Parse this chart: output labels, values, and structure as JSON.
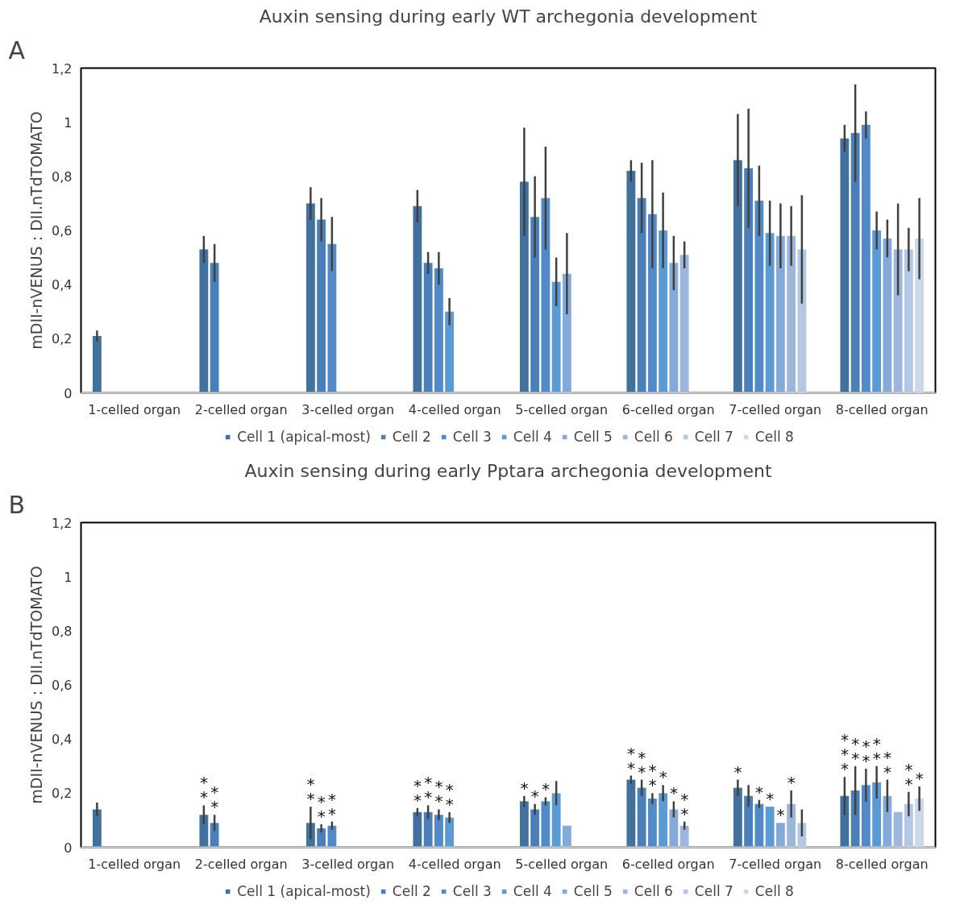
{
  "chart_data": [
    {
      "type": "bar",
      "title": "Auxin sensing during early WT archegonia development",
      "ylabel": "mDII-nVENUS : DII.nTdTOMATO",
      "annotations": [
        "A"
      ],
      "legend": "bottom",
      "ylim": [
        0,
        1.2
      ],
      "yticks": [
        0,
        {
          "value": 0.2,
          "label": "0,2"
        },
        {
          "value": 0.4,
          "label": "0,4"
        },
        {
          "value": 0.6,
          "label": "0,6"
        },
        {
          "value": 0.8,
          "label": "0,8"
        },
        1,
        {
          "value": 1.2,
          "label": "1,2"
        }
      ],
      "categories": [
        "1-celled organ",
        "2-celled organ",
        "3-celled organ",
        "4-celled organ",
        "5-celled organ",
        "6-celled organ",
        "7-celled organ",
        "8-celled organ"
      ],
      "series": [
        {
          "name": "Cell 1 (apical-most)",
          "color": "#41719c",
          "values": [
            0.21,
            0.53,
            0.7,
            0.69,
            0.78,
            0.82,
            0.86,
            0.94
          ],
          "errors": [
            0.02,
            0.05,
            0.06,
            0.06,
            0.2,
            0.04,
            0.17,
            0.05
          ]
        },
        {
          "name": "Cell 2",
          "color": "#4a7fba",
          "values": [
            null,
            0.48,
            0.64,
            0.48,
            0.65,
            0.72,
            0.83,
            0.96
          ],
          "errors": [
            null,
            0.07,
            0.08,
            0.04,
            0.15,
            0.13,
            0.22,
            0.18
          ]
        },
        {
          "name": "Cell 3",
          "color": "#5289c9",
          "values": [
            null,
            null,
            0.55,
            0.46,
            0.72,
            0.66,
            0.71,
            0.99
          ],
          "errors": [
            null,
            null,
            0.1,
            0.06,
            0.19,
            0.2,
            0.13,
            0.05
          ]
        },
        {
          "name": "Cell 4",
          "color": "#5b9bd5",
          "values": [
            null,
            null,
            null,
            0.3,
            0.41,
            0.6,
            0.59,
            0.6
          ],
          "errors": [
            null,
            null,
            null,
            0.05,
            0.09,
            0.14,
            0.12,
            0.07
          ]
        },
        {
          "name": "Cell 5",
          "color": "#85a9d8",
          "values": [
            null,
            null,
            null,
            null,
            0.44,
            0.48,
            0.58,
            0.57
          ],
          "errors": [
            null,
            null,
            null,
            null,
            0.15,
            0.1,
            0.12,
            0.07
          ]
        },
        {
          "name": "Cell 6",
          "color": "#9cb6de",
          "values": [
            null,
            null,
            null,
            null,
            null,
            0.51,
            0.58,
            0.53
          ],
          "errors": [
            null,
            null,
            null,
            null,
            null,
            0.05,
            0.11,
            0.17
          ]
        },
        {
          "name": "Cell 7",
          "color": "#b4c8e6",
          "values": [
            null,
            null,
            null,
            null,
            null,
            null,
            0.53,
            0.53
          ],
          "errors": [
            null,
            null,
            null,
            null,
            null,
            null,
            0.2,
            0.08
          ]
        },
        {
          "name": "Cell 8",
          "color": "#cbd8ec",
          "values": [
            null,
            null,
            null,
            null,
            null,
            null,
            null,
            0.57
          ],
          "errors": [
            null,
            null,
            null,
            null,
            null,
            null,
            null,
            0.15
          ]
        }
      ]
    },
    {
      "type": "bar",
      "title": "Auxin sensing during early Pptara archegonia development",
      "ylabel": "mDII-nVENUS : DII.nTdTOMATO",
      "annotations": [
        "B"
      ],
      "legend": "bottom",
      "ylim": [
        0,
        1.2
      ],
      "yticks": [
        0,
        {
          "value": 0.2,
          "label": "0,2"
        },
        {
          "value": 0.4,
          "label": "0,4"
        },
        {
          "value": 0.6,
          "label": "0,6"
        },
        {
          "value": 0.8,
          "label": "0,8"
        },
        1,
        {
          "value": 1.2,
          "label": "1,2"
        }
      ],
      "categories": [
        "1-celled organ",
        "2-celled organ",
        "3-celled organ",
        "4-celled organ",
        "5-celled organ",
        "6-celled organ",
        "7-celled organ",
        "8-celled organ"
      ],
      "series": [
        {
          "name": "Cell 1 (apical-most)",
          "color": "#41719c",
          "values": [
            0.14,
            0.12,
            0.09,
            0.13,
            0.17,
            0.25,
            0.22,
            0.19
          ],
          "errors": [
            0.025,
            0.035,
            0.06,
            0.015,
            0.02,
            0.015,
            0.03,
            0.07
          ],
          "value_labels": [
            null,
            "*\n*",
            "*\n*",
            "*\n*",
            "*",
            "*\n*",
            "*",
            "*\n*\n*"
          ]
        },
        {
          "name": "Cell 2",
          "color": "#4a7fba",
          "values": [
            null,
            0.09,
            0.07,
            0.13,
            0.14,
            0.22,
            0.19,
            0.21
          ],
          "errors": [
            null,
            0.03,
            0.015,
            0.025,
            0.02,
            0.03,
            0.04,
            0.09
          ],
          "value_labels": [
            null,
            "*\n*",
            "*\n*",
            "*\n*",
            "*",
            "*\n*",
            null,
            "*\n*"
          ]
        },
        {
          "name": "Cell 3",
          "color": "#5289c9",
          "values": [
            null,
            null,
            0.08,
            0.12,
            0.17,
            0.18,
            0.16,
            0.23
          ],
          "errors": [
            null,
            null,
            0.015,
            0.02,
            0.015,
            0.02,
            0.015,
            0.06
          ],
          "value_labels": [
            null,
            null,
            "*\n*",
            "*\n*",
            "*",
            "*\n*",
            "*",
            "*\n*"
          ]
        },
        {
          "name": "Cell 4",
          "color": "#5b9bd5",
          "values": [
            null,
            null,
            null,
            0.11,
            0.2,
            0.2,
            0.15,
            0.24
          ],
          "errors": [
            null,
            null,
            null,
            0.02,
            0.045,
            0.03,
            null,
            0.06
          ],
          "value_labels": [
            null,
            null,
            null,
            "*\n*",
            null,
            "*",
            "*",
            "*\n*"
          ]
        },
        {
          "name": "Cell 5",
          "color": "#85a9d8",
          "values": [
            null,
            null,
            null,
            null,
            0.08,
            0.14,
            0.09,
            0.19
          ],
          "errors": [
            null,
            null,
            null,
            null,
            null,
            0.03,
            null,
            0.06
          ],
          "value_labels": [
            null,
            null,
            null,
            null,
            null,
            "*",
            "*",
            "*\n*"
          ]
        },
        {
          "name": "Cell 6",
          "color": "#9cb6de",
          "values": [
            null,
            null,
            null,
            null,
            null,
            0.08,
            0.16,
            0.13
          ],
          "errors": [
            null,
            null,
            null,
            null,
            null,
            0.015,
            0.05,
            null
          ],
          "value_labels": [
            null,
            null,
            null,
            null,
            null,
            "*\n*",
            "*",
            null
          ]
        },
        {
          "name": "Cell 7",
          "color": "#b4c8e6",
          "values": [
            null,
            null,
            null,
            null,
            null,
            null,
            0.09,
            0.16
          ],
          "errors": [
            null,
            null,
            null,
            null,
            null,
            null,
            0.05,
            0.045
          ],
          "value_labels": [
            null,
            null,
            null,
            null,
            null,
            null,
            null,
            "*\n*"
          ]
        },
        {
          "name": "Cell 8",
          "color": "#cbd8ec",
          "values": [
            null,
            null,
            null,
            null,
            null,
            null,
            null,
            0.18
          ],
          "errors": [
            null,
            null,
            null,
            null,
            null,
            null,
            null,
            0.045
          ],
          "value_labels": [
            null,
            null,
            null,
            null,
            null,
            null,
            null,
            "*"
          ]
        }
      ]
    }
  ]
}
